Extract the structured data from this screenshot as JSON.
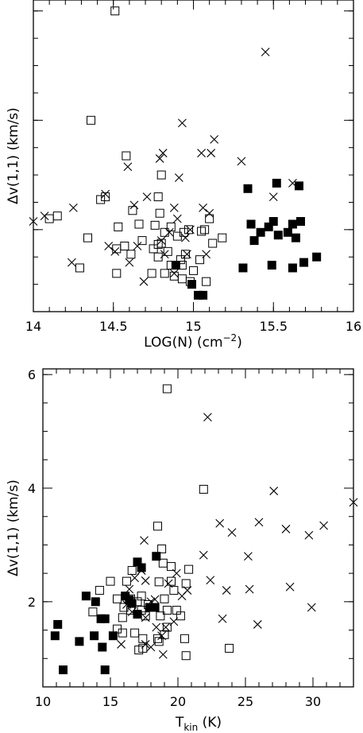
{
  "chart_data": [
    {
      "type": "scatter",
      "xlabel_main": "LOG(N) (cm",
      "xlabel_sup": "−2",
      "xlabel_end": ")",
      "ylabel": "Δv(1,1) (km/s)",
      "xlim": [
        14,
        16
      ],
      "ylim": [
        0.5,
        6.2
      ],
      "xticks": [
        14,
        14.5,
        15,
        15.5,
        16
      ],
      "xtick_labels": [
        "14",
        "14.5",
        "15",
        "15.5",
        "16"
      ],
      "yticks_major": [
        2,
        4,
        6
      ],
      "ytick_labels": [],
      "series": [
        {
          "marker": "open-square",
          "points": [
            [
              14.51,
              6.0
            ],
            [
              14.36,
              4.0
            ],
            [
              14.58,
              3.35
            ],
            [
              14.8,
              3.0
            ],
            [
              14.45,
              2.6
            ],
            [
              14.42,
              2.55
            ],
            [
              14.78,
              2.6
            ],
            [
              14.79,
              2.3
            ],
            [
              14.15,
              2.25
            ],
            [
              14.1,
              2.2
            ],
            [
              14.62,
              2.35
            ],
            [
              14.66,
              2.1
            ],
            [
              14.53,
              2.05
            ],
            [
              14.34,
              1.85
            ],
            [
              14.86,
              2.05
            ],
            [
              14.76,
              2.08
            ],
            [
              15.1,
              2.2
            ],
            [
              15.05,
              1.97
            ],
            [
              15.07,
              2.0
            ],
            [
              15.12,
              1.75
            ],
            [
              14.97,
              2.0
            ],
            [
              14.94,
              1.95
            ],
            [
              14.9,
              1.88
            ],
            [
              14.82,
              1.95
            ],
            [
              14.68,
              1.8
            ],
            [
              14.57,
              1.7
            ],
            [
              14.52,
              1.65
            ],
            [
              14.61,
              1.55
            ],
            [
              14.75,
              1.65
            ],
            [
              14.78,
              1.73
            ],
            [
              14.8,
              1.75
            ],
            [
              14.84,
              1.6
            ],
            [
              14.95,
              1.55
            ],
            [
              14.78,
              1.5
            ],
            [
              14.86,
              1.35
            ],
            [
              14.92,
              1.45
            ],
            [
              14.93,
              1.35
            ],
            [
              15.04,
              1.45
            ],
            [
              14.82,
              1.2
            ],
            [
              15.0,
              1.25
            ],
            [
              14.74,
              1.2
            ],
            [
              14.52,
              1.2
            ],
            [
              14.29,
              1.3
            ],
            [
              14.88,
              1.15
            ],
            [
              14.93,
              1.1
            ],
            [
              14.98,
              1.05
            ],
            [
              15.08,
              1.05
            ],
            [
              15.18,
              1.85
            ]
          ]
        },
        {
          "marker": "cross",
          "points": [
            [
              15.45,
              5.25
            ],
            [
              14.93,
              3.95
            ],
            [
              15.13,
              3.65
            ],
            [
              14.81,
              3.4
            ],
            [
              14.79,
              3.3
            ],
            [
              15.05,
              3.4
            ],
            [
              15.11,
              3.4
            ],
            [
              15.3,
              3.25
            ],
            [
              14.59,
              3.15
            ],
            [
              14.91,
              2.95
            ],
            [
              15.62,
              2.85
            ],
            [
              14.45,
              2.65
            ],
            [
              14.71,
              2.6
            ],
            [
              14.63,
              2.45
            ],
            [
              15.5,
              2.6
            ],
            [
              14.25,
              2.4
            ],
            [
              14.88,
              2.4
            ],
            [
              15.06,
              2.4
            ],
            [
              15.1,
              2.3
            ],
            [
              14.9,
              2.2
            ],
            [
              14.98,
              2.0
            ],
            [
              14.07,
              2.25
            ],
            [
              14.0,
              2.15
            ],
            [
              14.85,
              1.95
            ],
            [
              14.95,
              1.85
            ],
            [
              14.8,
              1.8
            ],
            [
              14.65,
              1.7
            ],
            [
              14.47,
              1.7
            ],
            [
              14.51,
              1.6
            ],
            [
              14.82,
              1.55
            ],
            [
              14.96,
              1.55
            ],
            [
              15.08,
              1.55
            ],
            [
              14.6,
              1.4
            ],
            [
              14.24,
              1.4
            ],
            [
              14.88,
              1.2
            ],
            [
              14.69,
              1.05
            ]
          ]
        },
        {
          "marker": "filled-square",
          "points": [
            [
              15.34,
              2.75
            ],
            [
              15.52,
              2.85
            ],
            [
              15.66,
              2.8
            ],
            [
              15.36,
              2.1
            ],
            [
              15.47,
              2.05
            ],
            [
              15.5,
              2.15
            ],
            [
              15.62,
              2.1
            ],
            [
              15.67,
              2.15
            ],
            [
              15.42,
              1.95
            ],
            [
              15.38,
              1.8
            ],
            [
              15.53,
              1.9
            ],
            [
              15.59,
              1.95
            ],
            [
              15.64,
              1.85
            ],
            [
              15.77,
              1.5
            ],
            [
              15.69,
              1.4
            ],
            [
              15.49,
              1.35
            ],
            [
              15.62,
              1.3
            ],
            [
              15.31,
              1.3
            ],
            [
              14.99,
              1.0
            ],
            [
              15.03,
              0.8
            ],
            [
              15.06,
              0.8
            ],
            [
              14.89,
              1.35
            ]
          ]
        }
      ]
    },
    {
      "type": "scatter",
      "xlabel_main": "T",
      "xlabel_sub": "kin",
      "xlabel_end": " (K)",
      "ylabel": "Δv(1,1) (km/s)",
      "xlim": [
        10,
        33
      ],
      "ylim": [
        0.5,
        6.1
      ],
      "xticks": [
        10,
        15,
        20,
        25,
        30
      ],
      "xtick_labels": [
        "10",
        "15",
        "20",
        "25",
        "30"
      ],
      "yticks_major": [
        2,
        4,
        6
      ],
      "ytick_labels": [
        "2",
        "4",
        "6"
      ],
      "series": [
        {
          "marker": "open-square",
          "points": [
            [
              19.2,
              5.75
            ],
            [
              21.9,
              3.98
            ],
            [
              18.5,
              3.33
            ],
            [
              18.8,
              2.93
            ],
            [
              15.0,
              2.36
            ],
            [
              16.2,
              2.36
            ],
            [
              19.5,
              2.36
            ],
            [
              19.7,
              2.2
            ],
            [
              19.5,
              2.62
            ],
            [
              16.6,
              2.55
            ],
            [
              18.9,
              2.68
            ],
            [
              20.8,
              2.57
            ],
            [
              20.6,
              2.32
            ],
            [
              14.2,
              2.2
            ],
            [
              13.7,
              1.82
            ],
            [
              15.5,
              2.05
            ],
            [
              16.5,
              2.05
            ],
            [
              17.3,
              2.1
            ],
            [
              17.0,
              2.0
            ],
            [
              17.8,
              1.95
            ],
            [
              18.6,
              2.35
            ],
            [
              19.0,
              2.05
            ],
            [
              18.2,
              1.9
            ],
            [
              16.0,
              1.9
            ],
            [
              16.5,
              1.85
            ],
            [
              15.9,
              1.72
            ],
            [
              17.3,
              1.85
            ],
            [
              17.6,
              1.75
            ],
            [
              18.7,
              1.75
            ],
            [
              19.2,
              1.85
            ],
            [
              19.9,
              1.85
            ],
            [
              15.5,
              1.52
            ],
            [
              15.9,
              1.45
            ],
            [
              16.8,
              1.45
            ],
            [
              17.4,
              1.35
            ],
            [
              18.5,
              1.35
            ],
            [
              19.2,
              1.55
            ],
            [
              18.6,
              1.3
            ],
            [
              20.5,
              1.35
            ],
            [
              17.4,
              1.18
            ],
            [
              17.1,
              1.15
            ],
            [
              19.0,
              1.42
            ],
            [
              20.2,
              1.75
            ],
            [
              20.6,
              1.05
            ],
            [
              23.8,
              1.18
            ]
          ]
        },
        {
          "marker": "cross",
          "points": [
            [
              22.2,
              5.25
            ],
            [
              27.1,
              3.95
            ],
            [
              33.0,
              3.75
            ],
            [
              23.1,
              3.38
            ],
            [
              24.0,
              3.22
            ],
            [
              26.0,
              3.4
            ],
            [
              28.0,
              3.28
            ],
            [
              29.7,
              3.17
            ],
            [
              30.8,
              3.34
            ],
            [
              21.9,
              2.82
            ],
            [
              25.2,
              2.8
            ],
            [
              22.4,
              2.38
            ],
            [
              23.6,
              2.2
            ],
            [
              25.3,
              2.22
            ],
            [
              28.3,
              2.26
            ],
            [
              17.5,
              3.08
            ],
            [
              17.3,
              2.55
            ],
            [
              16.8,
              2.42
            ],
            [
              16.4,
              2.22
            ],
            [
              17.6,
              2.37
            ],
            [
              18.0,
              2.0
            ],
            [
              18.3,
              2.04
            ],
            [
              19.3,
              2.32
            ],
            [
              19.9,
              2.5
            ],
            [
              20.3,
              2.1
            ],
            [
              20.7,
              2.2
            ],
            [
              16.2,
              1.95
            ],
            [
              16.6,
              1.82
            ],
            [
              17.6,
              1.72
            ],
            [
              19.7,
              1.65
            ],
            [
              19.1,
              1.55
            ],
            [
              18.4,
              1.55
            ],
            [
              18.8,
              1.4
            ],
            [
              18.0,
              1.2
            ],
            [
              17.6,
              1.25
            ],
            [
              15.8,
              1.25
            ],
            [
              23.3,
              1.7
            ],
            [
              25.9,
              1.6
            ],
            [
              29.9,
              1.9
            ],
            [
              18.9,
              1.07
            ]
          ]
        },
        {
          "marker": "filled-square",
          "points": [
            [
              17.0,
              2.7
            ],
            [
              17.3,
              2.6
            ],
            [
              18.4,
              2.8
            ],
            [
              13.2,
              2.1
            ],
            [
              13.9,
              2.0
            ],
            [
              16.1,
              2.1
            ],
            [
              16.6,
              1.97
            ],
            [
              16.4,
              2.03
            ],
            [
              17.9,
              1.9
            ],
            [
              18.3,
              1.9
            ],
            [
              17.0,
              1.78
            ],
            [
              14.3,
              1.7
            ],
            [
              14.6,
              1.7
            ],
            [
              13.8,
              1.4
            ],
            [
              15.2,
              1.4
            ],
            [
              11.1,
              1.6
            ],
            [
              10.9,
              1.4
            ],
            [
              12.7,
              1.3
            ],
            [
              14.4,
              1.2
            ],
            [
              11.5,
              0.8
            ],
            [
              14.6,
              0.8
            ]
          ]
        }
      ]
    }
  ]
}
